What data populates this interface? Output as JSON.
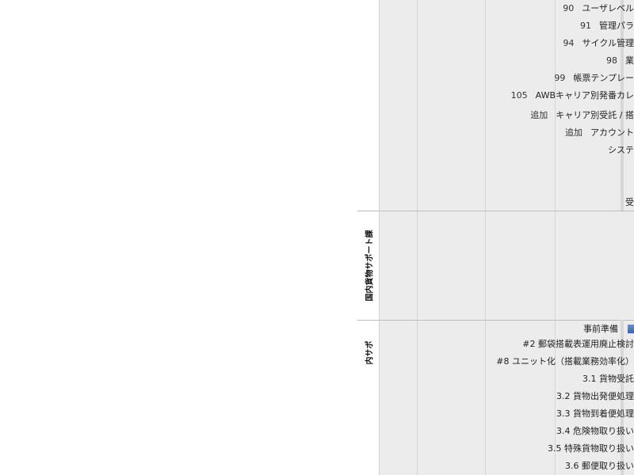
{
  "sections": [
    {
      "key": "kokunai",
      "label": "国内貨物サポート課"
    },
    {
      "key": "naisapo",
      "label": "内サポ"
    }
  ],
  "top_rows": [
    {
      "num": "90",
      "name": "ユーザレベル"
    },
    {
      "num": "91",
      "name": "管理パラ"
    },
    {
      "num": "94",
      "name": "サイクル管理"
    },
    {
      "num": "98",
      "name": "業"
    },
    {
      "num": "99",
      "name": "帳票テンプレー"
    },
    {
      "num": "105",
      "name": "AWBキャリア別発番カレ"
    },
    {
      "num": "追加",
      "name": "キャリア別受託 / 搭"
    },
    {
      "num": "追加",
      "name": "アカウント"
    },
    {
      "num": "",
      "name": "システ"
    },
    {
      "num": "",
      "name": "受"
    }
  ],
  "bottom_rows": [
    {
      "name": "事前準備"
    },
    {
      "name": "#2 郵袋搭載表運用廃止検討"
    },
    {
      "name": "#8 ユニット化（搭載業務効率化）"
    },
    {
      "name": "3.1 貨物受託"
    },
    {
      "name": "3.2 貨物出発便処理"
    },
    {
      "name": "3.3 貨物到着便処理"
    },
    {
      "name": "3.4 危険物取り扱い"
    },
    {
      "name": "3.5 特殊貨物取り扱い"
    },
    {
      "name": "3.6 郵便取り扱い"
    }
  ],
  "colors": {
    "chart_bg": "#ececec",
    "grid": "#d4d4d4",
    "bar": "#3d63a8"
  }
}
